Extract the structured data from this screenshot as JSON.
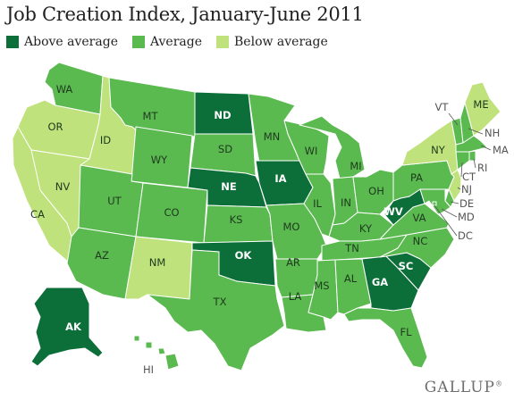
{
  "title": "Job Creation Index, January-June 2011",
  "legend": [
    {
      "key": "above",
      "label": "Above average",
      "color": "#0c6e38"
    },
    {
      "key": "avg",
      "label": "Average",
      "color": "#5ab94f"
    },
    {
      "key": "below",
      "label": "Below average",
      "color": "#c0e27c"
    }
  ],
  "colors": {
    "above": "#0c6e38",
    "avg": "#5ab94f",
    "below": "#c0e27c"
  },
  "states": [
    {
      "code": "WA",
      "label": "WA",
      "category": "avg"
    },
    {
      "code": "OR",
      "label": "OR",
      "category": "below"
    },
    {
      "code": "CA",
      "label": "CA",
      "category": "below"
    },
    {
      "code": "NV",
      "label": "NV",
      "category": "below"
    },
    {
      "code": "ID",
      "label": "ID",
      "category": "below"
    },
    {
      "code": "MT",
      "label": "MT",
      "category": "avg"
    },
    {
      "code": "WY",
      "label": "WY",
      "category": "avg"
    },
    {
      "code": "UT",
      "label": "UT",
      "category": "avg"
    },
    {
      "code": "AZ",
      "label": "AZ",
      "category": "avg"
    },
    {
      "code": "CO",
      "label": "CO",
      "category": "avg"
    },
    {
      "code": "NM",
      "label": "NM",
      "category": "below"
    },
    {
      "code": "ND",
      "label": "ND",
      "category": "above"
    },
    {
      "code": "SD",
      "label": "SD",
      "category": "avg"
    },
    {
      "code": "NE",
      "label": "NE",
      "category": "above"
    },
    {
      "code": "KS",
      "label": "KS",
      "category": "avg"
    },
    {
      "code": "OK",
      "label": "OK",
      "category": "above"
    },
    {
      "code": "TX",
      "label": "TX",
      "category": "avg"
    },
    {
      "code": "MN",
      "label": "MN",
      "category": "avg"
    },
    {
      "code": "IA",
      "label": "IA",
      "category": "above"
    },
    {
      "code": "MO",
      "label": "MO",
      "category": "avg"
    },
    {
      "code": "AR",
      "label": "AR",
      "category": "avg"
    },
    {
      "code": "LA",
      "label": "LA",
      "category": "avg"
    },
    {
      "code": "WI",
      "label": "WI",
      "category": "avg"
    },
    {
      "code": "IL",
      "label": "IL",
      "category": "avg"
    },
    {
      "code": "MI",
      "label": "MI",
      "category": "avg"
    },
    {
      "code": "IN",
      "label": "IN",
      "category": "avg"
    },
    {
      "code": "OH",
      "label": "OH",
      "category": "avg"
    },
    {
      "code": "KY",
      "label": "KY",
      "category": "avg"
    },
    {
      "code": "TN",
      "label": "TN",
      "category": "avg"
    },
    {
      "code": "MS",
      "label": "MS",
      "category": "avg"
    },
    {
      "code": "AL",
      "label": "AL",
      "category": "avg"
    },
    {
      "code": "GA",
      "label": "GA",
      "category": "above"
    },
    {
      "code": "FL",
      "label": "FL",
      "category": "avg"
    },
    {
      "code": "SC",
      "label": "SC",
      "category": "above"
    },
    {
      "code": "NC",
      "label": "NC",
      "category": "avg"
    },
    {
      "code": "VA",
      "label": "VA",
      "category": "avg"
    },
    {
      "code": "WV",
      "label": "WV",
      "category": "above"
    },
    {
      "code": "PA",
      "label": "PA",
      "category": "avg"
    },
    {
      "code": "NY",
      "label": "NY",
      "category": "below"
    },
    {
      "code": "VT",
      "label": "VT",
      "category": "avg"
    },
    {
      "code": "NH",
      "label": "NH",
      "category": "avg"
    },
    {
      "code": "ME",
      "label": "ME",
      "category": "below"
    },
    {
      "code": "MA",
      "label": "MA",
      "category": "avg"
    },
    {
      "code": "RI",
      "label": "RI",
      "category": "avg"
    },
    {
      "code": "CT",
      "label": "CT",
      "category": "avg"
    },
    {
      "code": "NJ",
      "label": "NJ",
      "category": "below"
    },
    {
      "code": "DE",
      "label": "DE",
      "category": "avg"
    },
    {
      "code": "MD",
      "label": "MD",
      "category": "avg"
    },
    {
      "code": "DC",
      "label": "DC",
      "category": "avg"
    },
    {
      "code": "AK",
      "label": "AK",
      "category": "above"
    },
    {
      "code": "HI",
      "label": "HI",
      "category": "avg"
    }
  ],
  "brand": {
    "name": "GALLUP",
    "mark": "®"
  }
}
